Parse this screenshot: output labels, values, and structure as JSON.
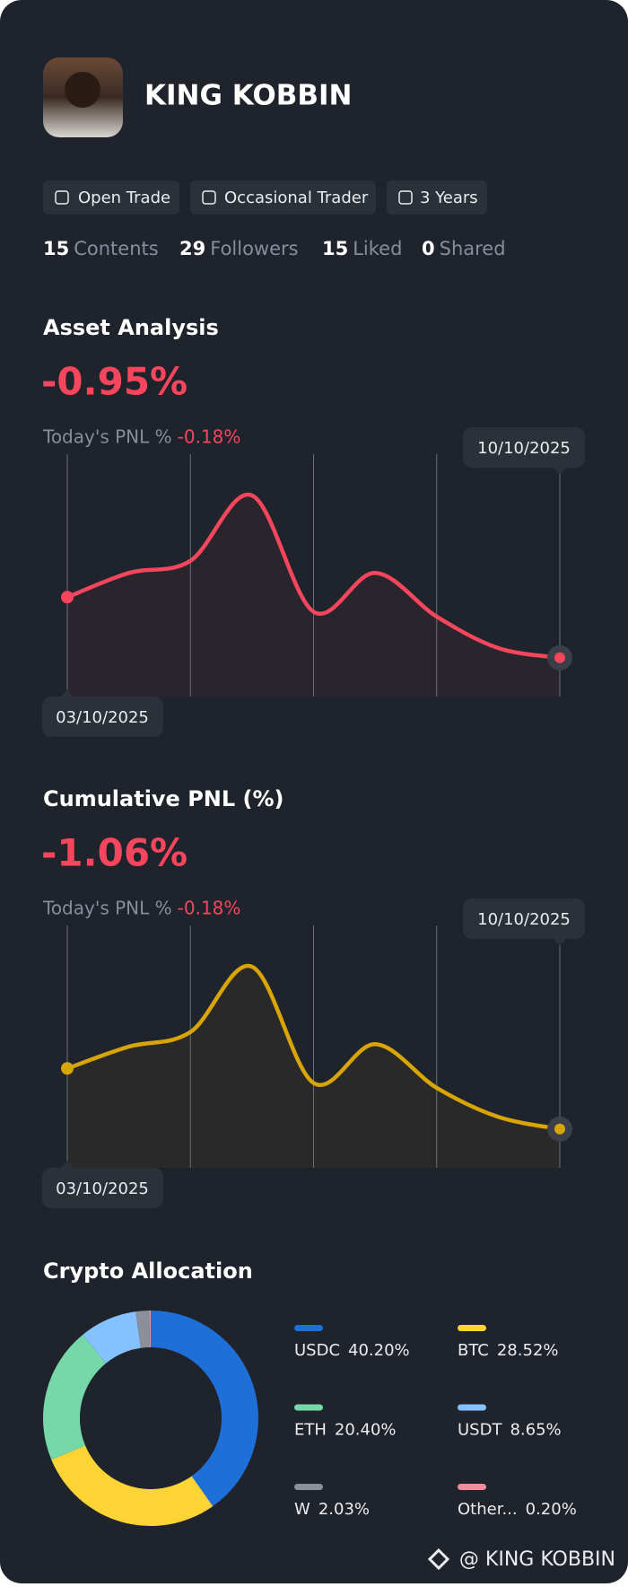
{
  "profile": {
    "name": "KING KOBBIN",
    "tags": [
      "Open Trade",
      "Occasional Trader",
      "3 Years"
    ],
    "stats": [
      {
        "value": 15,
        "label": "Contents"
      },
      {
        "value": 29,
        "label": "Followers"
      },
      {
        "value": 15,
        "label": "Liked"
      },
      {
        "value": 0,
        "label": "Shared"
      }
    ]
  },
  "chart_data": [
    {
      "type": "line",
      "title": "Asset Analysis",
      "headline": "-0.95%",
      "today_label": "Today's PNL %",
      "today_value": "-0.18%",
      "categories": [
        "03/10/2025",
        null,
        null,
        null,
        null,
        null,
        null,
        null,
        "10/10/2025"
      ],
      "values": [
        41,
        51,
        56,
        83,
        35,
        51,
        33,
        20,
        16
      ],
      "ylim": [
        0,
        100
      ],
      "color": "#f6465d"
    },
    {
      "type": "line",
      "title": "Cumulative PNL (%)",
      "headline": "-1.06%",
      "today_label": "Today's PNL %",
      "today_value": "-0.18%",
      "categories": [
        "03/10/2025",
        null,
        null,
        null,
        null,
        null,
        null,
        null,
        "10/10/2025"
      ],
      "values": [
        41,
        50,
        56,
        83,
        35,
        51,
        33,
        21,
        16
      ],
      "ylim": [
        0,
        100
      ],
      "color": "#d9a406"
    },
    {
      "type": "pie",
      "title": "Crypto Allocation",
      "categories": [
        "USDC",
        "BTC",
        "ETH",
        "USDT",
        "W",
        "Other..."
      ],
      "values": [
        40.2,
        28.52,
        20.4,
        8.65,
        2.03,
        0.2
      ],
      "value_labels": [
        "40.20%",
        "28.52%",
        "20.40%",
        "8.65%",
        "2.03%",
        "0.20%"
      ],
      "colors": [
        "#1f6fd8",
        "#fcd535",
        "#76d7a9",
        "#86c1ff",
        "#8a8f99",
        "#f08d9a"
      ]
    }
  ],
  "footer": "@ KING KOBBIN"
}
